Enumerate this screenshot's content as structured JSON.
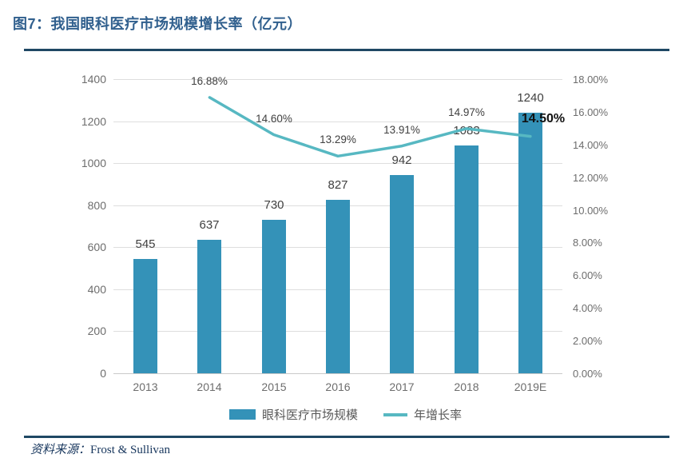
{
  "figure": {
    "title": "图7：我国眼科医疗市场规模增长率（亿元）",
    "source_label": "资料来源：",
    "source_value": "Frost & Sullivan"
  },
  "chart_data": {
    "type": "bar",
    "subtype": "bar+line dual axis",
    "title": "我国眼科医疗市场规模增长率（亿元）",
    "categories": [
      "2013",
      "2014",
      "2015",
      "2016",
      "2017",
      "2018",
      "2019E"
    ],
    "series": [
      {
        "name": "眼科医疗市场规模",
        "type": "bar",
        "axis": "left",
        "values": [
          545,
          637,
          730,
          827,
          942,
          1083,
          1240
        ],
        "value_labels": [
          "545",
          "637",
          "730",
          "827",
          "942",
          "1083",
          "1240"
        ],
        "color": "#3492b8"
      },
      {
        "name": "年增长率",
        "type": "line",
        "axis": "right",
        "values": [
          null,
          16.88,
          14.6,
          13.29,
          13.91,
          14.97,
          14.5
        ],
        "value_labels": [
          null,
          "16.88%",
          "14.60%",
          "13.29%",
          "13.91%",
          "14.97%",
          "14.50%"
        ],
        "color": "#57b8c2"
      }
    ],
    "left_axis": {
      "min": 0,
      "max": 1400,
      "step": 200,
      "ticks": [
        "0",
        "200",
        "400",
        "600",
        "800",
        "1000",
        "1200",
        "1400"
      ]
    },
    "right_axis": {
      "min": 0,
      "max": 18,
      "step": 2,
      "ticks": [
        "0.00%",
        "2.00%",
        "4.00%",
        "6.00%",
        "8.00%",
        "10.00%",
        "12.00%",
        "14.00%",
        "16.00%",
        "18.00%"
      ]
    },
    "grid": true,
    "legend_position": "bottom",
    "xlabel": "",
    "ylabel": ""
  },
  "colors": {
    "bar": "#3492b8",
    "line": "#57b8c2",
    "title": "#31608e",
    "rule": "#1f4864",
    "grid": "#dedede",
    "tick_text": "#6d6d6d",
    "value_text": "#404040",
    "source_text": "#17365d"
  }
}
